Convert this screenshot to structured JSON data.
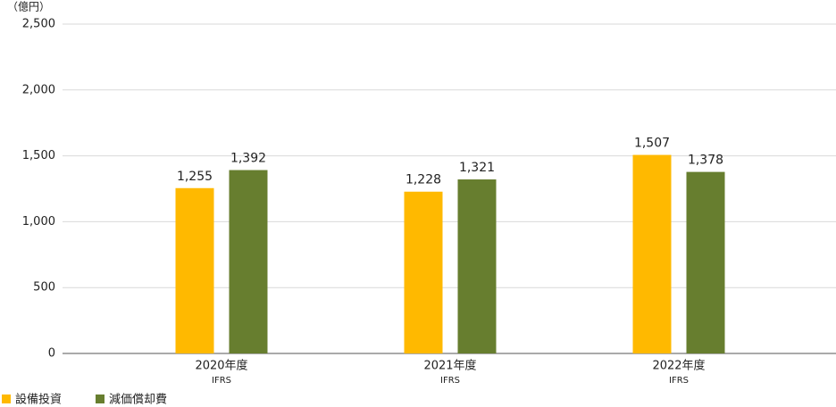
{
  "chart_data": {
    "type": "bar",
    "ylabel": "（億円）",
    "categories": [
      "2020年度",
      "2021年度",
      "2022年度"
    ],
    "category_notes": [
      "IFRS",
      "IFRS",
      "IFRS"
    ],
    "series": [
      {
        "name": "設備投資",
        "color": "#ffb900",
        "values": [
          1255,
          1228,
          1507
        ],
        "value_labels": [
          "1,255",
          "1,228",
          "1,507"
        ]
      },
      {
        "name": "減価償却費",
        "color": "#677e2f",
        "values": [
          1392,
          1321,
          1378
        ],
        "value_labels": [
          "1,392",
          "1,321",
          "1,378"
        ]
      }
    ],
    "ylim": [
      0,
      2500
    ],
    "yticks": [
      0,
      {
        "value": 500,
        "label": "500"
      },
      {
        "value": 1000,
        "label": "1,000"
      },
      {
        "value": 1500,
        "label": "1,500"
      },
      {
        "value": 2000,
        "label": "2,000"
      },
      {
        "value": 2500,
        "label": "2,500"
      }
    ],
    "grid": true,
    "legend": "bottom-left"
  }
}
